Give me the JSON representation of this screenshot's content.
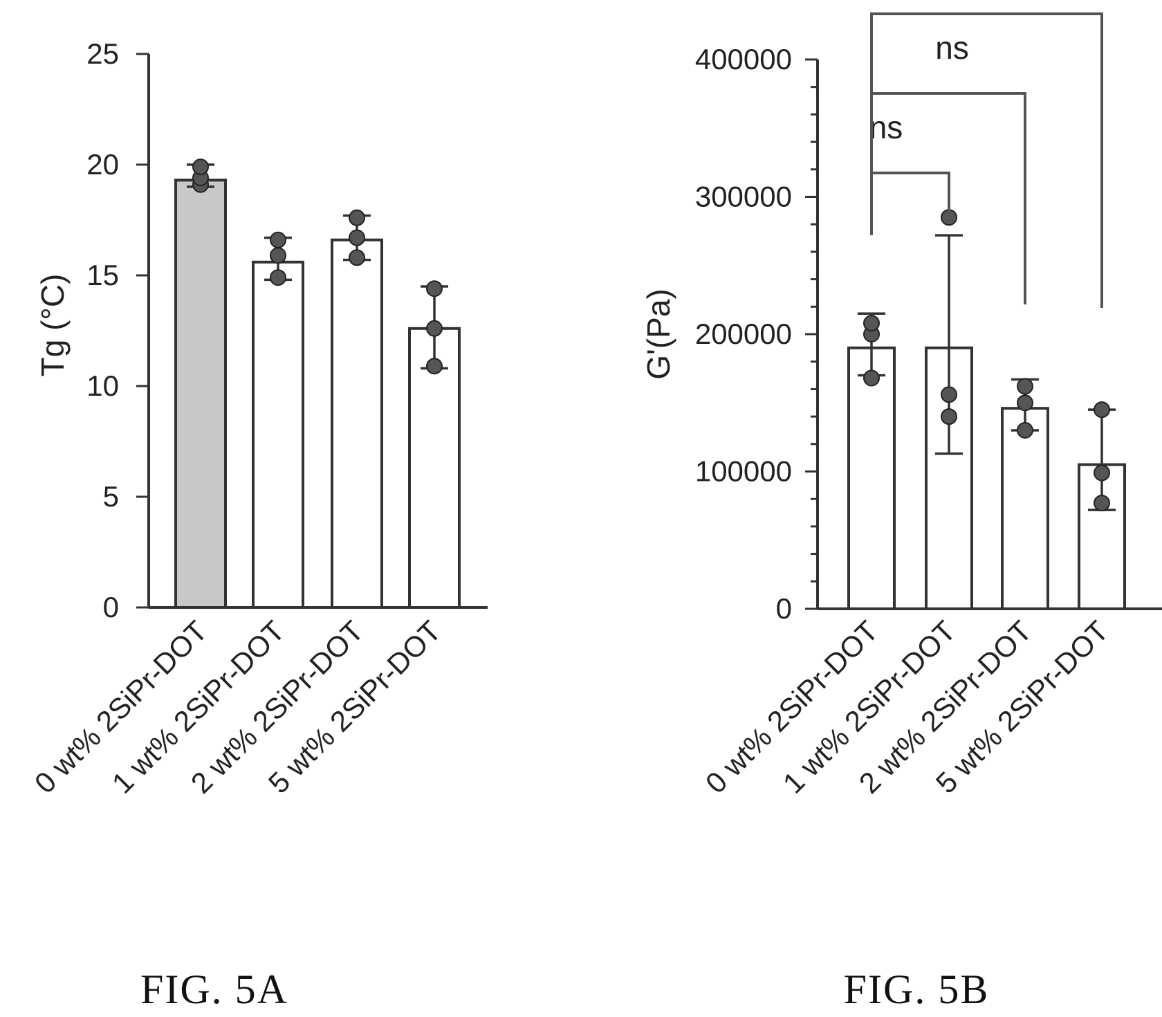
{
  "figures": [
    {
      "caption": "FIG. 5A",
      "chart_data": {
        "type": "bar",
        "title": "",
        "xlabel": "",
        "ylabel": "Tg (°C)",
        "ylim": [
          0,
          25
        ],
        "yticks": [
          0,
          5,
          10,
          15,
          20,
          25
        ],
        "ytick_labels": [
          "0",
          "5",
          "10",
          "15",
          "20",
          "25"
        ],
        "minor_ticks": false,
        "categories": [
          "0 wt% 2SiPr-DOT",
          "1 wt% 2SiPr-DOT",
          "2 wt% 2SiPr-DOT",
          "5 wt% 2SiPr-DOT"
        ],
        "values": [
          19.3,
          15.6,
          16.6,
          12.6
        ],
        "error_low": [
          19.0,
          14.8,
          15.7,
          10.8
        ],
        "error_high": [
          20.0,
          16.7,
          17.7,
          14.5
        ],
        "points": [
          [
            19.1,
            19.4,
            19.9
          ],
          [
            14.9,
            15.9,
            16.6
          ],
          [
            15.8,
            16.7,
            17.6
          ],
          [
            10.9,
            12.6,
            14.4
          ]
        ],
        "bar_fills": [
          "#c8c8c8",
          "#ffffff",
          "#ffffff",
          "#ffffff"
        ],
        "grid": false,
        "significance": []
      }
    },
    {
      "caption": "FIG. 5B",
      "chart_data": {
        "type": "bar",
        "title": "",
        "xlabel": "",
        "ylabel": "G'(Pa)",
        "ylim": [
          0,
          400000
        ],
        "yticks": [
          0,
          100000,
          200000,
          300000,
          400000
        ],
        "ytick_labels": [
          "0",
          "100000",
          "200000",
          "300000",
          "400000"
        ],
        "minor_ticks": true,
        "categories": [
          "0 wt% 2SiPr-DOT",
          "1 wt% 2SiPr-DOT",
          "2 wt% 2SiPr-DOT",
          "5 wt% 2SiPr-DOT"
        ],
        "values": [
          190000,
          190000,
          146000,
          105000
        ],
        "error_low": [
          170000,
          113000,
          130000,
          72000
        ],
        "error_high": [
          215000,
          272000,
          167000,
          145000
        ],
        "points": [
          [
            168000,
            200000,
            208000
          ],
          [
            140000,
            156000,
            285000
          ],
          [
            130000,
            150000,
            162000
          ],
          [
            77000,
            99000,
            145000
          ]
        ],
        "bar_fills": [
          "#ffffff",
          "#ffffff",
          "#ffffff",
          "#ffffff"
        ],
        "grid": false,
        "significance": [
          {
            "from": 0,
            "to": 1,
            "label": ""
          },
          {
            "from": 0,
            "to": 2,
            "label": "ns"
          },
          {
            "from": 0,
            "to": 3,
            "label": "ns"
          }
        ]
      }
    }
  ]
}
